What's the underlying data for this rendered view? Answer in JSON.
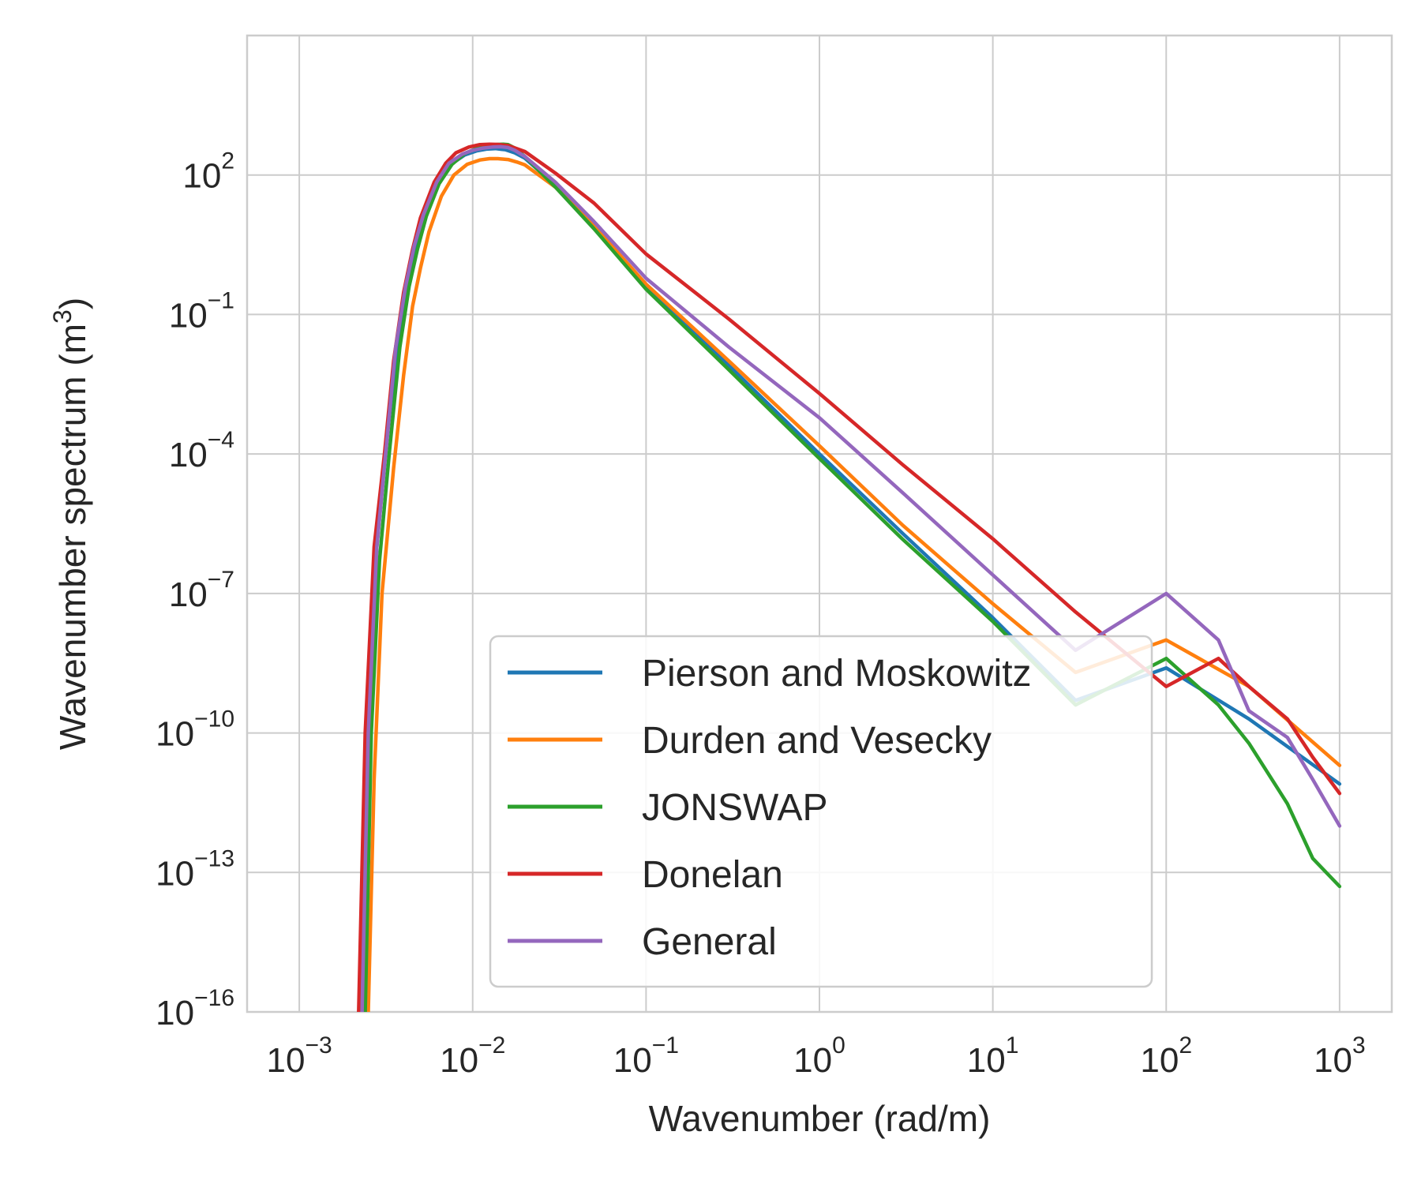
{
  "chart_data": {
    "type": "line",
    "xlabel": "Wavenumber (rad/m)",
    "ylabel": "Wavenumber spectrum (m^3)",
    "ylabel_parts": {
      "main": "Wavenumber spectrum (m",
      "sup": "3",
      "close": ")"
    },
    "xscale": "log",
    "yscale": "log",
    "xlim": [
      0.0005,
      2000
    ],
    "ylim": [
      1e-16,
      100000.0
    ],
    "grid": true,
    "legend_position": "lower-center",
    "x_ticks": [
      {
        "value": 0.001,
        "base": "10",
        "exp": "−3"
      },
      {
        "value": 0.01,
        "base": "10",
        "exp": "−2"
      },
      {
        "value": 0.1,
        "base": "10",
        "exp": "−1"
      },
      {
        "value": 1,
        "base": "10",
        "exp": "0"
      },
      {
        "value": 10,
        "base": "10",
        "exp": "1"
      },
      {
        "value": 100,
        "base": "10",
        "exp": "2"
      },
      {
        "value": 1000,
        "base": "10",
        "exp": "3"
      }
    ],
    "y_ticks": [
      {
        "value": 1e-16,
        "base": "10",
        "exp": "−16"
      },
      {
        "value": 1e-13,
        "base": "10",
        "exp": "−13"
      },
      {
        "value": 1e-10,
        "base": "10",
        "exp": "−10"
      },
      {
        "value": 1e-07,
        "base": "10",
        "exp": "−7"
      },
      {
        "value": 0.0001,
        "base": "10",
        "exp": "−4"
      },
      {
        "value": 0.1,
        "base": "10",
        "exp": "−1"
      },
      {
        "value": 100,
        "base": "10",
        "exp": "2"
      }
    ],
    "series": [
      {
        "name": "Pierson and Moskowitz",
        "color": "#1f77b4",
        "x": [
          0.0023,
          0.0025,
          0.0028,
          0.0032,
          0.0037,
          0.0042,
          0.0047,
          0.0053,
          0.0063,
          0.0075,
          0.009,
          0.0105,
          0.012,
          0.0135,
          0.0155,
          0.0175,
          0.02,
          0.03,
          0.05,
          0.1,
          0.3,
          1,
          3,
          10,
          30,
          100,
          300,
          1000
        ],
        "y": [
          1e-16,
          1e-10,
          1e-06,
          0.0002,
          0.03,
          0.5,
          3,
          15,
          70,
          170,
          270,
          330,
          360,
          370,
          350,
          300,
          230,
          60,
          8,
          0.4,
          0.008,
          0.0001,
          2e-06,
          3e-08,
          5e-10,
          2.5e-09,
          2e-10,
          8e-12
        ]
      },
      {
        "name": "Durden and Vesecky",
        "color": "#ff7f0e",
        "x": [
          0.0025,
          0.0027,
          0.003,
          0.0035,
          0.004,
          0.0045,
          0.005,
          0.0056,
          0.0066,
          0.0078,
          0.0093,
          0.011,
          0.0125,
          0.014,
          0.016,
          0.018,
          0.02,
          0.03,
          0.05,
          0.1,
          0.3,
          1,
          3,
          10,
          30,
          100,
          300,
          1000
        ],
        "y": [
          1e-16,
          1e-11,
          1e-07,
          5e-05,
          0.005,
          0.15,
          1,
          6,
          35,
          100,
          170,
          210,
          225,
          225,
          215,
          190,
          165,
          55,
          8,
          0.45,
          0.01,
          0.00015,
          3e-06,
          6e-08,
          2e-09,
          1e-08,
          1e-09,
          2e-11
        ]
      },
      {
        "name": "JONSWAP",
        "color": "#2ca02c",
        "x": [
          0.0024,
          0.0026,
          0.0029,
          0.0033,
          0.0038,
          0.0043,
          0.0048,
          0.0054,
          0.0064,
          0.0076,
          0.009,
          0.0105,
          0.012,
          0.0135,
          0.015,
          0.016,
          0.0175,
          0.02,
          0.03,
          0.05,
          0.1,
          0.3,
          1,
          3,
          10,
          30,
          100,
          200,
          300,
          500,
          700,
          1000
        ],
        "y": [
          1e-16,
          1e-10,
          5e-07,
          0.0001,
          0.02,
          0.4,
          2.5,
          13,
          65,
          170,
          290,
          370,
          420,
          450,
          460,
          450,
          380,
          250,
          55,
          7,
          0.35,
          0.0065,
          8e-05,
          1.5e-06,
          2.5e-08,
          4e-10,
          4e-09,
          4e-10,
          6e-11,
          3e-12,
          2e-13,
          5e-14
        ]
      },
      {
        "name": "Donelan",
        "color": "#d62728",
        "x": [
          0.0022,
          0.0024,
          0.0027,
          0.0031,
          0.0035,
          0.004,
          0.0045,
          0.005,
          0.006,
          0.007,
          0.008,
          0.0095,
          0.011,
          0.0125,
          0.014,
          0.016,
          0.02,
          0.03,
          0.05,
          0.1,
          0.3,
          1,
          3,
          10,
          30,
          100,
          200,
          300,
          500,
          700,
          1000
        ],
        "y": [
          1e-16,
          1e-10,
          1e-06,
          0.0001,
          0.01,
          0.3,
          2.5,
          12,
          70,
          180,
          300,
          400,
          450,
          460,
          455,
          430,
          320,
          110,
          25,
          2,
          0.08,
          0.002,
          6e-05,
          1.5e-06,
          4e-08,
          1e-09,
          4e-09,
          1e-09,
          2e-10,
          3e-11,
          5e-12
        ]
      },
      {
        "name": "General",
        "color": "#9467bd",
        "x": [
          0.0023,
          0.0025,
          0.0028,
          0.0032,
          0.0036,
          0.0041,
          0.0046,
          0.0052,
          0.0062,
          0.0073,
          0.0087,
          0.01,
          0.0115,
          0.013,
          0.0145,
          0.016,
          0.0175,
          0.02,
          0.03,
          0.05,
          0.1,
          0.3,
          1,
          3,
          10,
          30,
          100,
          200,
          300,
          500,
          700,
          1000
        ],
        "y": [
          1e-16,
          1e-10,
          1e-06,
          0.0002,
          0.02,
          0.4,
          3,
          14,
          70,
          180,
          280,
          340,
          380,
          400,
          405,
          390,
          340,
          250,
          70,
          10,
          0.6,
          0.02,
          0.0006,
          1.5e-05,
          2.5e-07,
          6e-09,
          1e-07,
          1e-08,
          3e-10,
          8e-11,
          1e-11,
          1e-12
        ]
      }
    ]
  }
}
